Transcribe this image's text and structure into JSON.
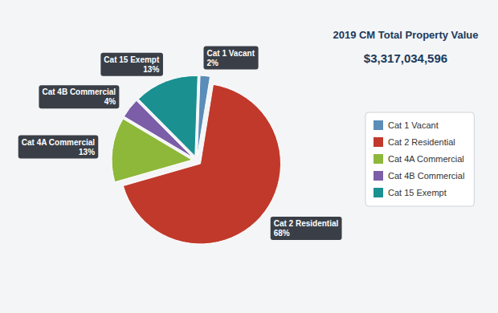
{
  "chart_data": {
    "type": "pie",
    "title": "2019 CM Total Property Value",
    "subtitle": "$3,317,034,596",
    "categories": [
      "Cat 1 Vacant",
      "Cat 2 Residential",
      "Cat 4A Commercial",
      "Cat 4B Commercial",
      "Cat 15 Exempt"
    ],
    "values": [
      2,
      68,
      13,
      4,
      13
    ],
    "value_labels": [
      "2%",
      "68%",
      "13%",
      "4%",
      "13%"
    ],
    "colors": [
      "#5b8db8",
      "#c0392b",
      "#8db83a",
      "#7b5ea7",
      "#1a9090"
    ],
    "data_labels": true,
    "legend": "right"
  }
}
